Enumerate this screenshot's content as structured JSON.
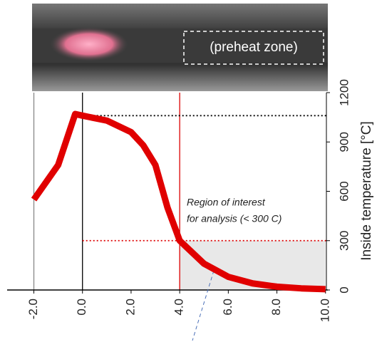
{
  "chart_data": {
    "type": "line",
    "photo_label": "(preheat zone)",
    "y_label": "Inside temperature [°C]",
    "annotation": [
      "Region of interest",
      "for analysis (< 300 C)"
    ],
    "x": [
      -2,
      -1,
      -0.3,
      0,
      1,
      2,
      2.5,
      3,
      3.5,
      4,
      5,
      6,
      7,
      8,
      9,
      10
    ],
    "series": [
      {
        "color": "#e00000",
        "values": [
          550,
          760,
          1070,
          1060,
          1030,
          960,
          880,
          760,
          500,
          300,
          160,
          80,
          40,
          20,
          10,
          5
        ]
      }
    ],
    "xlim": [
      -3.1,
      10.3
    ],
    "ylim": [
      0,
      1200
    ],
    "xticks": [
      {
        "value": -2,
        "label": "-2.0"
      },
      {
        "value": 0,
        "label": "0.0"
      },
      {
        "value": 2,
        "label": "2.0"
      },
      {
        "value": 4,
        "label": "4.0"
      },
      {
        "value": 6,
        "label": "6.0"
      },
      {
        "value": 8,
        "label": "8.0"
      },
      {
        "value": 10,
        "label": "10.0"
      }
    ],
    "yticks": [
      0,
      300,
      600,
      900,
      1200
    ],
    "vlines": [
      {
        "value": -2,
        "color": "#888"
      },
      {
        "value": 0,
        "color": "#000"
      },
      {
        "value": 4,
        "color": "#d00"
      }
    ],
    "hlines": [
      {
        "value": 1060,
        "color": "#000"
      },
      {
        "value": 300,
        "color": "#d00"
      }
    ],
    "shade": {
      "x": [
        4,
        10
      ],
      "y": [
        0,
        300
      ],
      "color": "#e8e8e8"
    }
  }
}
